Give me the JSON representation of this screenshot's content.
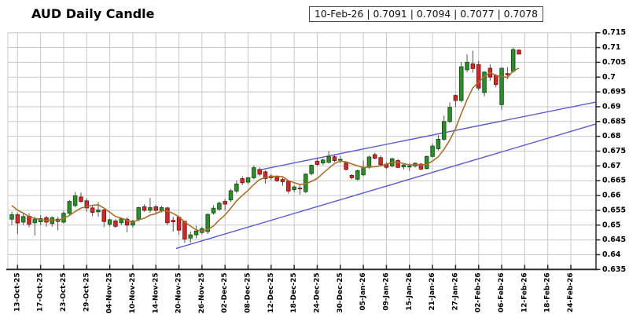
{
  "title": "AUD Daily Candle",
  "info_box": {
    "text": "10-Feb-26 | 0.7091 | 0.7094 | 0.7077 | 0.7078",
    "date": "10-Feb-26",
    "open": "0.7091",
    "high": "0.7094",
    "low": "0.7077",
    "close": "0.7078"
  },
  "chart_data": {
    "type": "candlestick",
    "title": "AUD Daily Candle",
    "ylim": [
      0.635,
      0.715
    ],
    "y_ticks": {
      "labels": [
        "0.715",
        "0.71",
        "0.705",
        "0.7",
        "0.695",
        "0.69",
        "0.685",
        "0.68",
        "0.675",
        "0.67",
        "0.665",
        "0.66",
        "0.655",
        "0.65",
        "0.645",
        "0.64",
        "0.635"
      ],
      "values": [
        0.715,
        0.71,
        0.705,
        0.7,
        0.695,
        0.69,
        0.685,
        0.68,
        0.675,
        0.67,
        0.665,
        0.66,
        0.655,
        0.65,
        0.645,
        0.64,
        0.635
      ]
    },
    "x_tick_labels": [
      "13-Oct-25",
      "17-Oct-25",
      "23-Oct-25",
      "29-Oct-25",
      "04-Nov-25",
      "10-Nov-25",
      "14-Nov-25",
      "20-Nov-25",
      "26-Nov-25",
      "02-Dec-25",
      "08-Dec-25",
      "12-Dec-25",
      "18-Dec-25",
      "24-Dec-25",
      "30-Dec-25",
      "05-Jan-26",
      "09-Jan-26",
      "15-Jan-26",
      "21-Jan-26",
      "27-Jan-26",
      "02-Feb-26",
      "06-Feb-26",
      "12-Feb-26",
      "18-Feb-26",
      "24-Feb-26"
    ],
    "x_first_tick_candle_index": 1,
    "x_tick_candle_step": 4,
    "candles_ohlc": [
      [
        0.652,
        0.6545,
        0.65,
        0.6535
      ],
      [
        0.6535,
        0.6542,
        0.647,
        0.6507
      ],
      [
        0.651,
        0.6538,
        0.65,
        0.6529
      ],
      [
        0.653,
        0.654,
        0.6493,
        0.6503
      ],
      [
        0.6508,
        0.6528,
        0.6465,
        0.6519
      ],
      [
        0.6511,
        0.6533,
        0.65,
        0.6522
      ],
      [
        0.6525,
        0.6531,
        0.6495,
        0.651
      ],
      [
        0.6505,
        0.653,
        0.6495,
        0.6525
      ],
      [
        0.6512,
        0.6528,
        0.6482,
        0.652
      ],
      [
        0.651,
        0.6548,
        0.6505,
        0.654
      ],
      [
        0.654,
        0.6585,
        0.6535,
        0.658
      ],
      [
        0.6566,
        0.6612,
        0.656,
        0.6599
      ],
      [
        0.6595,
        0.661,
        0.6575,
        0.658
      ],
      [
        0.6582,
        0.659,
        0.6545,
        0.6558
      ],
      [
        0.6558,
        0.6565,
        0.653,
        0.6543
      ],
      [
        0.6545,
        0.6578,
        0.6528,
        0.6551
      ],
      [
        0.6551,
        0.6556,
        0.6493,
        0.6512
      ],
      [
        0.6503,
        0.6522,
        0.6495,
        0.6518
      ],
      [
        0.6514,
        0.652,
        0.649,
        0.6496
      ],
      [
        0.6508,
        0.6525,
        0.65,
        0.6521
      ],
      [
        0.652,
        0.6526,
        0.6475,
        0.65
      ],
      [
        0.65,
        0.6518,
        0.6492,
        0.6514
      ],
      [
        0.652,
        0.6562,
        0.6512,
        0.6559
      ],
      [
        0.6562,
        0.657,
        0.6545,
        0.655
      ],
      [
        0.655,
        0.6592,
        0.6542,
        0.6559
      ],
      [
        0.6562,
        0.6568,
        0.6536,
        0.655
      ],
      [
        0.655,
        0.6565,
        0.6542,
        0.6559
      ],
      [
        0.6558,
        0.6562,
        0.65,
        0.6508
      ],
      [
        0.6516,
        0.6528,
        0.6478,
        0.6511
      ],
      [
        0.6527,
        0.653,
        0.6467,
        0.6483
      ],
      [
        0.6513,
        0.6515,
        0.644,
        0.6453
      ],
      [
        0.6456,
        0.6478,
        0.644,
        0.6467
      ],
      [
        0.6467,
        0.6498,
        0.6455,
        0.648
      ],
      [
        0.6475,
        0.6495,
        0.6468,
        0.6488
      ],
      [
        0.6478,
        0.654,
        0.647,
        0.6536
      ],
      [
        0.6541,
        0.6567,
        0.6535,
        0.6557
      ],
      [
        0.6554,
        0.658,
        0.6548,
        0.6574
      ],
      [
        0.658,
        0.6588,
        0.655,
        0.6571
      ],
      [
        0.6585,
        0.6622,
        0.6578,
        0.6616
      ],
      [
        0.6615,
        0.665,
        0.6608,
        0.6639
      ],
      [
        0.6657,
        0.6665,
        0.6635,
        0.6643
      ],
      [
        0.6645,
        0.6662,
        0.6638,
        0.666
      ],
      [
        0.666,
        0.6702,
        0.6655,
        0.6694
      ],
      [
        0.6688,
        0.6695,
        0.6665,
        0.6672
      ],
      [
        0.668,
        0.6685,
        0.664,
        0.6657
      ],
      [
        0.6666,
        0.6672,
        0.6652,
        0.666
      ],
      [
        0.6662,
        0.6668,
        0.6645,
        0.665
      ],
      [
        0.6654,
        0.666,
        0.6633,
        0.6647
      ],
      [
        0.6648,
        0.6652,
        0.6606,
        0.6615
      ],
      [
        0.662,
        0.6635,
        0.6611,
        0.6629
      ],
      [
        0.6625,
        0.6637,
        0.6603,
        0.6623
      ],
      [
        0.6613,
        0.6675,
        0.6608,
        0.6672
      ],
      [
        0.6674,
        0.6705,
        0.6668,
        0.6702
      ],
      [
        0.6716,
        0.6728,
        0.67,
        0.6705
      ],
      [
        0.671,
        0.6725,
        0.6703,
        0.672
      ],
      [
        0.6712,
        0.675,
        0.6708,
        0.6731
      ],
      [
        0.6731,
        0.6738,
        0.6712,
        0.6718
      ],
      [
        0.672,
        0.6734,
        0.671,
        0.6722
      ],
      [
        0.671,
        0.6715,
        0.6685,
        0.6688
      ],
      [
        0.6668,
        0.6672,
        0.6655,
        0.666
      ],
      [
        0.6655,
        0.6688,
        0.665,
        0.6684
      ],
      [
        0.667,
        0.6718,
        0.6665,
        0.6695
      ],
      [
        0.6695,
        0.6735,
        0.669,
        0.673
      ],
      [
        0.6738,
        0.6745,
        0.6722,
        0.6726
      ],
      [
        0.6728,
        0.6735,
        0.67,
        0.6704
      ],
      [
        0.6706,
        0.6712,
        0.669,
        0.6695
      ],
      [
        0.67,
        0.6728,
        0.6695,
        0.6724
      ],
      [
        0.6718,
        0.6724,
        0.6692,
        0.6695
      ],
      [
        0.6697,
        0.671,
        0.6688,
        0.6703
      ],
      [
        0.6697,
        0.671,
        0.6683,
        0.6699
      ],
      [
        0.67,
        0.6712,
        0.6694,
        0.6709
      ],
      [
        0.6706,
        0.671,
        0.6686,
        0.6689
      ],
      [
        0.6691,
        0.6735,
        0.6688,
        0.6732
      ],
      [
        0.6732,
        0.6776,
        0.6728,
        0.6767
      ],
      [
        0.6758,
        0.6805,
        0.6752,
        0.679
      ],
      [
        0.679,
        0.687,
        0.6785,
        0.685
      ],
      [
        0.685,
        0.6915,
        0.6845,
        0.6898
      ],
      [
        0.6938,
        0.6941,
        0.69,
        0.6921
      ],
      [
        0.6921,
        0.7051,
        0.6915,
        0.7035
      ],
      [
        0.7025,
        0.7077,
        0.7016,
        0.705
      ],
      [
        0.7045,
        0.7089,
        0.7015,
        0.7029
      ],
      [
        0.7042,
        0.7055,
        0.6955,
        0.6963
      ],
      [
        0.6948,
        0.702,
        0.6935,
        0.7017
      ],
      [
        0.703,
        0.7043,
        0.6988,
        0.7
      ],
      [
        0.7005,
        0.701,
        0.6966,
        0.6975
      ],
      [
        0.6907,
        0.7032,
        0.6889,
        0.703
      ],
      [
        0.7012,
        0.7034,
        0.6993,
        0.7008
      ],
      [
        0.702,
        0.71,
        0.7015,
        0.7093
      ],
      [
        0.7091,
        0.7094,
        0.7077,
        0.7078
      ]
    ],
    "ma_line": {
      "period": 6,
      "seed_closes": [
        0.66,
        0.659,
        0.6575,
        0.6555,
        0.6541
      ],
      "color": "#a8702a"
    },
    "trend_lines": [
      {
        "from_index": 28.5,
        "from_price": 0.6421,
        "to_index": 101.4,
        "to_price": 0.6842
      },
      {
        "from_index": 42.6,
        "from_price": 0.6685,
        "to_index": 101.4,
        "to_price": 0.6916
      }
    ],
    "colors": {
      "up_fill": "#2e8b2e",
      "up_border": "#145214",
      "down_fill": "#cc2a2a",
      "down_border": "#801515",
      "wick": "#555555",
      "grid": "#c8c8c8",
      "axis": "#2b2b2b",
      "trend": "#5c5ccd",
      "label": "#000000"
    }
  }
}
